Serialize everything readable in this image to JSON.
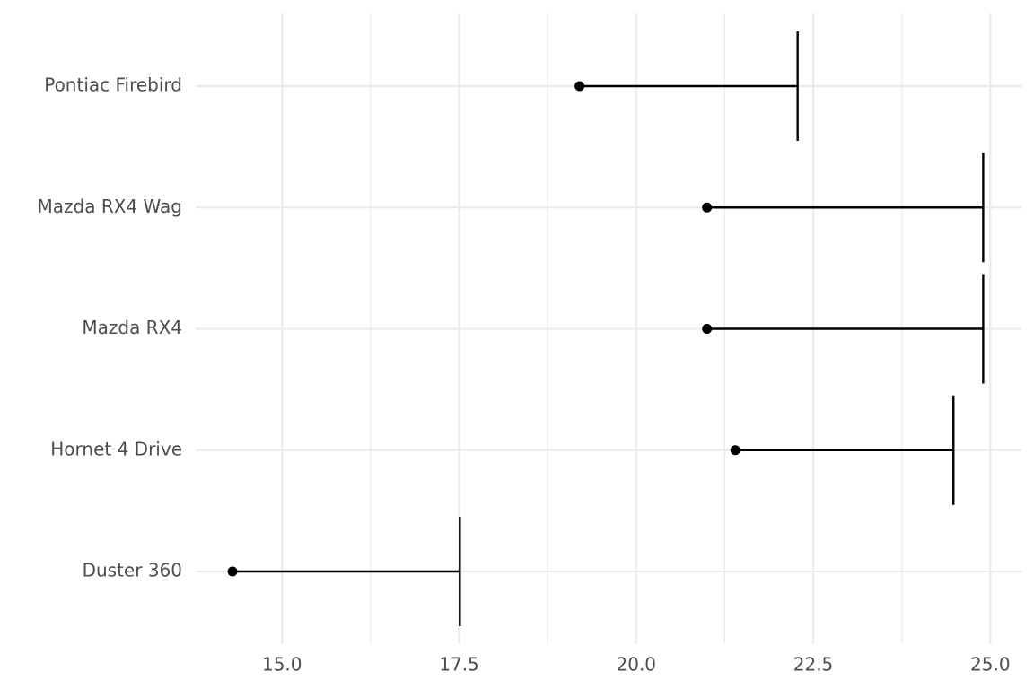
{
  "chart_data": {
    "type": "errorbar",
    "categories": [
      "Duster 360",
      "Hornet 4 Drive",
      "Mazda RX4",
      "Mazda RX4 Wag",
      "Pontiac Firebird"
    ],
    "values": [
      14.3,
      21.4,
      21.0,
      21.0,
      19.2
    ],
    "errors": [
      3.21,
      3.08,
      3.9,
      3.9,
      3.08
    ],
    "color": "#000000",
    "xlim": [
      13.78,
      25.44
    ],
    "xticks": [
      {
        "value": 15,
        "label": "15.0"
      },
      17.5,
      {
        "value": 20,
        "label": "20.0"
      },
      22.5,
      {
        "value": 25,
        "label": "25.0"
      }
    ],
    "grid": true
  }
}
